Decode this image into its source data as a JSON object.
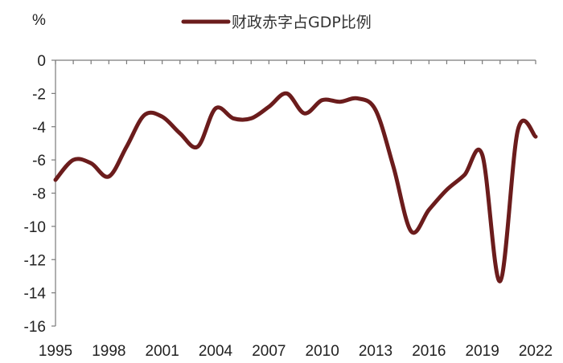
{
  "chart_data": {
    "type": "line",
    "ylabel": "%",
    "ylim": [
      -16,
      0
    ],
    "yticks": [
      0,
      -2,
      -4,
      -6,
      -8,
      -10,
      -12,
      -14,
      -16
    ],
    "xlim": [
      1995,
      2022
    ],
    "xticks": [
      1995,
      1998,
      2001,
      2004,
      2007,
      2010,
      2013,
      2016,
      2019,
      2022
    ],
    "grid": false,
    "legend_position": "top",
    "series": [
      {
        "name": "财政赤字占GDP比例",
        "color": "#6b1c1c",
        "x": [
          1995,
          1996,
          1997,
          1998,
          1999,
          2000,
          2001,
          2002,
          2003,
          2004,
          2005,
          2006,
          2007,
          2008,
          2009,
          2010,
          2011,
          2012,
          2013,
          2014,
          2015,
          2016,
          2017,
          2018,
          2019,
          2020,
          2021,
          2022
        ],
        "values": [
          -7.2,
          -6.0,
          -6.2,
          -7.0,
          -5.2,
          -3.3,
          -3.4,
          -4.4,
          -5.2,
          -2.9,
          -3.5,
          -3.5,
          -2.8,
          -2.0,
          -3.2,
          -2.4,
          -2.5,
          -2.3,
          -3.0,
          -6.4,
          -10.3,
          -9.0,
          -7.8,
          -6.9,
          -5.7,
          -13.3,
          -4.2,
          -4.6
        ]
      }
    ]
  }
}
